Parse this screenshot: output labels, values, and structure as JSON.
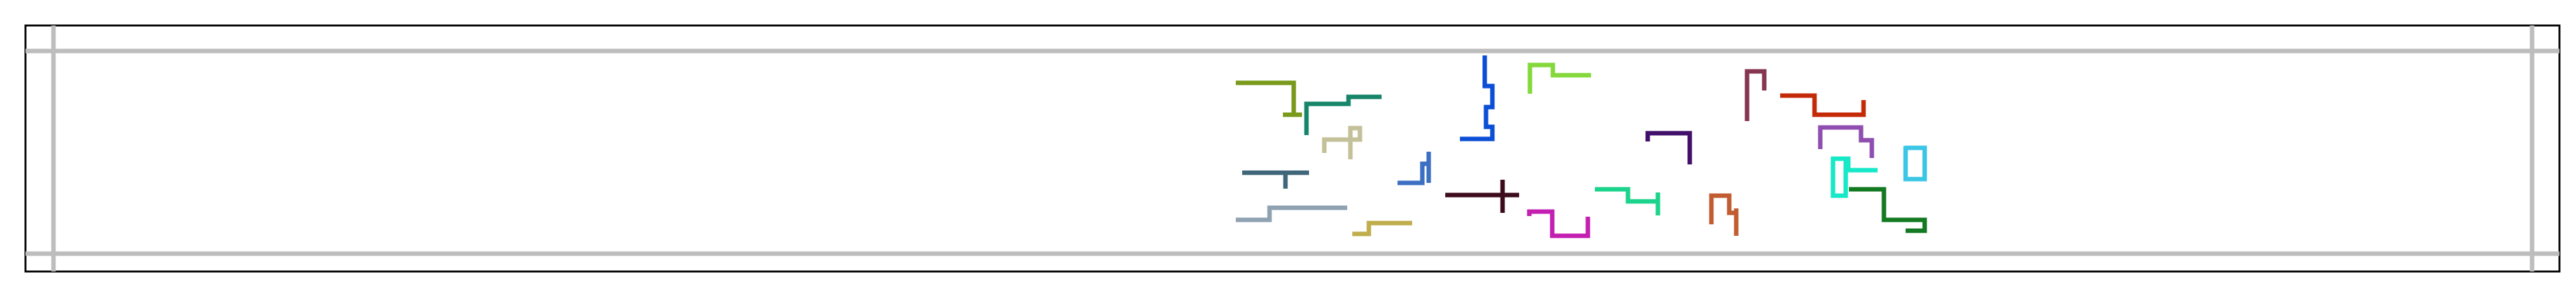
{
  "figure": {
    "frame_color": "#000000",
    "grid_color": "#bdbdbd",
    "background": "#ffffff"
  },
  "glyphs": [
    {
      "id": "glyph-olive",
      "color": "#7a9a1c"
    },
    {
      "id": "glyph-teal-green",
      "color": "#16856a"
    },
    {
      "id": "glyph-khaki",
      "color": "#c3c09a"
    },
    {
      "id": "glyph-slate",
      "color": "#3f6679"
    },
    {
      "id": "glyph-grey-blue",
      "color": "#8ea2b2"
    },
    {
      "id": "glyph-mustard",
      "color": "#c1ad4c"
    },
    {
      "id": "glyph-blue",
      "color": "#0c4fd6"
    },
    {
      "id": "glyph-steel-blue",
      "color": "#3d70c2"
    },
    {
      "id": "glyph-dark-maroon",
      "color": "#3d0b1b"
    },
    {
      "id": "glyph-lime",
      "color": "#84d83c"
    },
    {
      "id": "glyph-magenta",
      "color": "#c31fb1"
    },
    {
      "id": "glyph-spring",
      "color": "#1cd38b"
    },
    {
      "id": "glyph-indigo",
      "color": "#42106a"
    },
    {
      "id": "glyph-plum",
      "color": "#853651"
    },
    {
      "id": "glyph-rust",
      "color": "#c52a08"
    },
    {
      "id": "glyph-orange-brown",
      "color": "#c25d32"
    },
    {
      "id": "glyph-violet",
      "color": "#8f4fb0"
    },
    {
      "id": "glyph-aqua",
      "color": "#17e8c8"
    },
    {
      "id": "glyph-sky",
      "color": "#3bc6e6"
    },
    {
      "id": "glyph-green",
      "color": "#137a22"
    }
  ]
}
